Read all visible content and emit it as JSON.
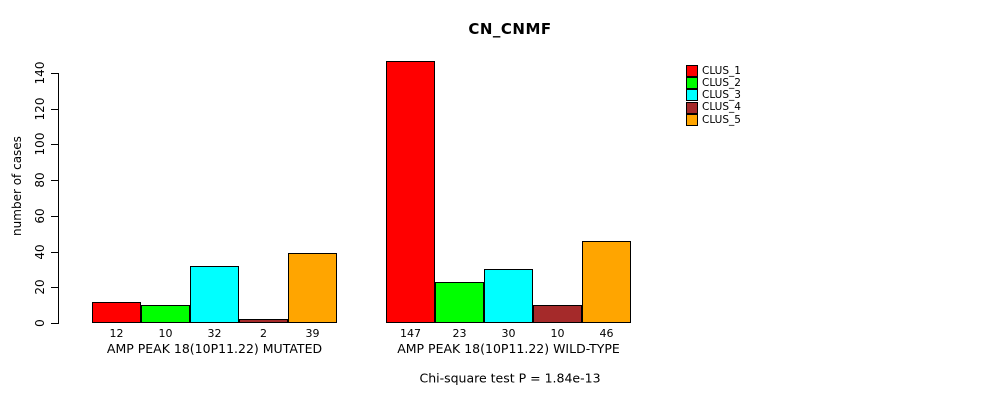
{
  "chart_data": {
    "type": "bar",
    "title": "CN_CNMF",
    "ylabel": "number of cases",
    "xlabel": "",
    "ylim": [
      0,
      140
    ],
    "yticks": [
      0,
      20,
      40,
      60,
      80,
      100,
      120,
      140
    ],
    "grid": false,
    "legend_position": "right",
    "categories": [
      "AMP PEAK 18(10P11.22) MUTATED",
      "AMP PEAK 18(10P11.22) WILD-TYPE"
    ],
    "series": [
      {
        "name": "CLUS_1",
        "color": "#FF0000",
        "values": [
          12,
          147
        ]
      },
      {
        "name": "CLUS_2",
        "color": "#00FF00",
        "values": [
          10,
          23
        ]
      },
      {
        "name": "CLUS_3",
        "color": "#00FFFF",
        "values": [
          32,
          30
        ]
      },
      {
        "name": "CLUS_4",
        "color": "#A52A2A",
        "values": [
          2,
          10
        ]
      },
      {
        "name": "CLUS_5",
        "color": "#FFA500",
        "values": [
          39,
          46
        ]
      }
    ],
    "annotation": "Chi-square test P = 1.84e-13"
  }
}
